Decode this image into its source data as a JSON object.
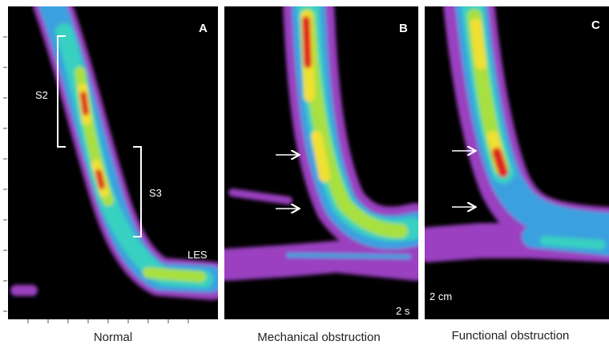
{
  "panels": [
    {
      "letter": "A",
      "caption": "Normal",
      "labels": [
        "S2",
        "S3",
        "LES"
      ]
    },
    {
      "letter": "B",
      "caption": "Mechanical obstruction",
      "scale": "2 s"
    },
    {
      "letter": "C",
      "caption": "Functional obstruction",
      "scale": "2 cm"
    }
  ]
}
